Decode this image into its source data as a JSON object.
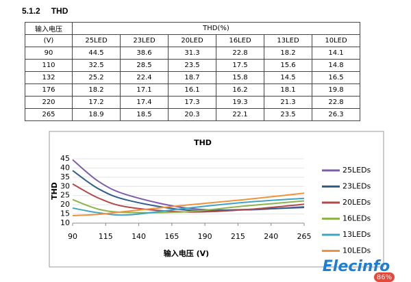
{
  "heading": {
    "number": "5.1.2",
    "title": "THD"
  },
  "table": {
    "header": [
      "输入电压",
      "THD(%)"
    ],
    "subheader": [
      "(V)",
      "25LED",
      "23LED",
      "20LED",
      "16LED",
      "13LED",
      "10LED"
    ],
    "rows": [
      [
        "90",
        "44.5",
        "38.6",
        "31.3",
        "22.8",
        "18.2",
        "14.1"
      ],
      [
        "110",
        "32.5",
        "28.5",
        "23.5",
        "17.5",
        "15.6",
        "14.8"
      ],
      [
        "132",
        "25.2",
        "22.4",
        "18.7",
        "15.8",
        "14.5",
        "16.5"
      ],
      [
        "176",
        "18.2",
        "17.1",
        "16.1",
        "16.2",
        "18.1",
        "19.8"
      ],
      [
        "220",
        "17.2",
        "17.4",
        "17.3",
        "19.3",
        "21.3",
        "22.8"
      ],
      [
        "265",
        "18.9",
        "18.5",
        "20.3",
        "22.1",
        "23.5",
        "26.3"
      ]
    ]
  },
  "chart_data": {
    "type": "line",
    "title": "THD",
    "x_label": "输入电压 (V)",
    "y_label": "THD",
    "x": [
      90,
      110,
      132,
      176,
      220,
      265
    ],
    "xlim": [
      90,
      265
    ],
    "xticks": [
      90,
      115,
      140,
      165,
      190,
      215,
      240,
      265
    ],
    "ylim": [
      10,
      45
    ],
    "yticks": [
      10,
      15,
      20,
      25,
      30,
      35,
      40,
      45
    ],
    "grid": true,
    "series": [
      {
        "name": "25LEDs",
        "color": "#7b5ea7",
        "values": [
          44.5,
          32.5,
          25.2,
          18.2,
          17.2,
          18.9
        ]
      },
      {
        "name": "23LEDs",
        "color": "#2e5f8a",
        "values": [
          38.6,
          28.5,
          22.4,
          17.1,
          17.4,
          18.5
        ]
      },
      {
        "name": "20LEDs",
        "color": "#b04a4a",
        "values": [
          31.3,
          23.5,
          18.7,
          16.1,
          17.3,
          20.3
        ]
      },
      {
        "name": "16LEDs",
        "color": "#8db34a",
        "values": [
          22.8,
          17.5,
          15.8,
          16.2,
          19.3,
          22.1
        ]
      },
      {
        "name": "13LEDs",
        "color": "#3fa4c4",
        "values": [
          18.2,
          15.6,
          14.5,
          18.1,
          21.3,
          23.5
        ]
      },
      {
        "name": "10LEDs",
        "color": "#f0923c",
        "values": [
          14.1,
          14.8,
          16.5,
          19.8,
          22.8,
          26.3
        ]
      }
    ]
  },
  "logo": "Elecinfo",
  "badge": "86%"
}
